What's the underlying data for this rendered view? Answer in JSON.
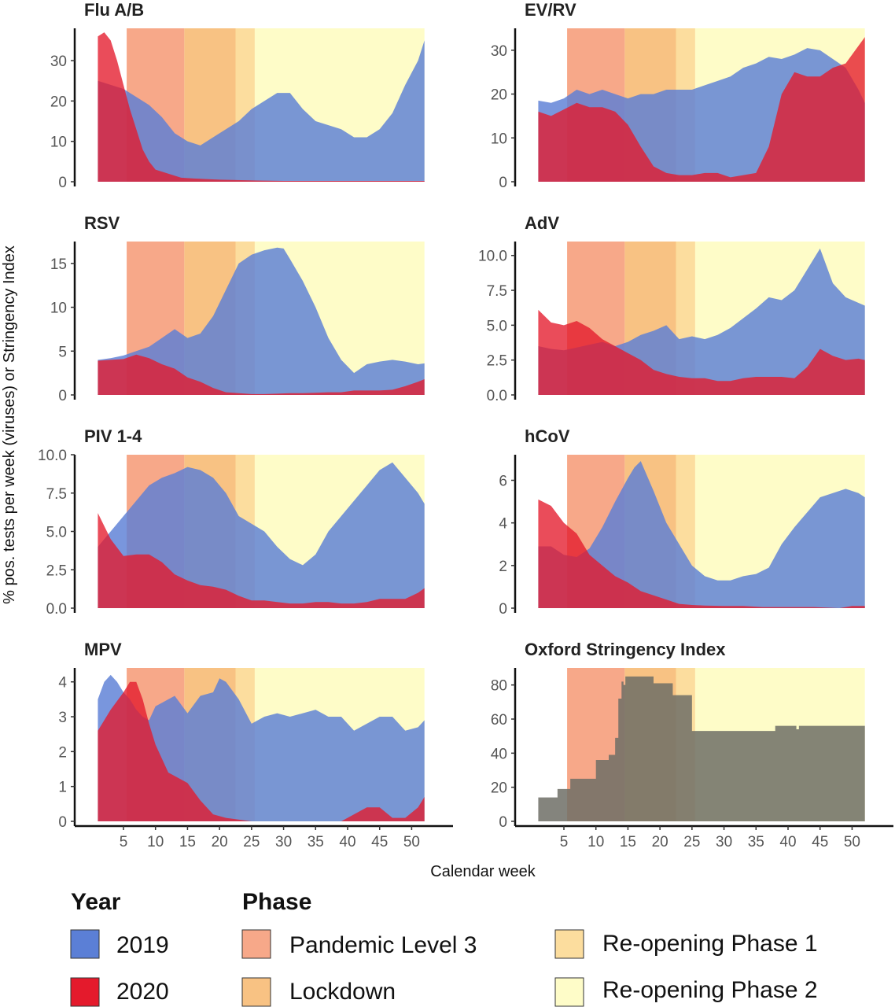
{
  "colors": {
    "y2019": "#5b7fd6",
    "y2020": "#e41a2c",
    "oxford": "#6e6e66",
    "pandemic_level_3": "#f7a889",
    "lockdown": "#f8c283",
    "reopening_1": "#fcdd9e",
    "reopening_2": "#fefcc8"
  },
  "phases": [
    {
      "name": "Pandemic Level 3",
      "start": 5.5,
      "end": 14.5,
      "color_key": "pandemic_level_3"
    },
    {
      "name": "Lockdown",
      "start": 14.5,
      "end": 22.5,
      "color_key": "lockdown"
    },
    {
      "name": "Re-opening Phase 1",
      "start": 22.5,
      "end": 25.5,
      "color_key": "reopening_1"
    },
    {
      "name": "Re-opening Phase 2",
      "start": 25.5,
      "end": 52,
      "color_key": "reopening_2"
    }
  ],
  "chart_data": [
    {
      "type": "area",
      "title": "Flu A/B",
      "xlim": [
        -2,
        54
      ],
      "ylim": [
        0,
        38
      ],
      "yticks": [
        0,
        10,
        20,
        30
      ],
      "ytick_labels": [
        "0",
        "10",
        "20",
        "30"
      ],
      "series": [
        {
          "name": "2019",
          "x": [
            1,
            3,
            5,
            7,
            9,
            11,
            13,
            15,
            17,
            19,
            21,
            23,
            25,
            27,
            29,
            31,
            33,
            35,
            37,
            39,
            41,
            43,
            45,
            47,
            49,
            51,
            52
          ],
          "values": [
            25,
            24,
            23,
            21,
            19,
            16,
            12,
            10,
            9,
            11,
            13,
            15,
            18,
            20,
            22,
            22,
            18,
            15,
            14,
            13,
            11,
            11,
            13,
            17,
            24,
            30,
            35
          ]
        },
        {
          "name": "2020",
          "x": [
            1,
            2,
            3,
            4,
            5,
            6,
            7,
            8,
            9,
            10,
            12,
            14,
            16,
            20,
            26,
            30,
            36,
            40,
            46,
            52
          ],
          "values": [
            36,
            37,
            35,
            30,
            24,
            18,
            13,
            8,
            5,
            3,
            2,
            1,
            0.8,
            0.5,
            0.3,
            0.2,
            0.2,
            0.2,
            0.2,
            0.2
          ]
        }
      ]
    },
    {
      "type": "area",
      "title": "EV/RV",
      "xlim": [
        -2,
        54
      ],
      "ylim": [
        0,
        35
      ],
      "yticks": [
        0,
        10,
        20,
        30
      ],
      "ytick_labels": [
        "0",
        "10",
        "20",
        "30"
      ],
      "series": [
        {
          "name": "2019",
          "x": [
            1,
            3,
            5,
            7,
            9,
            11,
            13,
            15,
            17,
            19,
            21,
            23,
            25,
            27,
            29,
            31,
            33,
            35,
            37,
            39,
            41,
            43,
            45,
            47,
            49,
            51,
            52
          ],
          "values": [
            18.5,
            18,
            19,
            21,
            20,
            21,
            20,
            19,
            20,
            20,
            21,
            21,
            21,
            22,
            23,
            24,
            26,
            27,
            28.5,
            28,
            29,
            30.5,
            30,
            28,
            26,
            21,
            18
          ]
        },
        {
          "name": "2020",
          "x": [
            1,
            3,
            5,
            7,
            9,
            11,
            13,
            15,
            17,
            19,
            21,
            23,
            25,
            27,
            29,
            31,
            33,
            35,
            37,
            39,
            41,
            43,
            45,
            47,
            49,
            51,
            52
          ],
          "values": [
            16,
            15,
            16.5,
            18,
            17,
            17,
            16,
            13,
            8,
            3.5,
            2,
            1.5,
            1.5,
            2,
            2,
            1,
            1.5,
            2,
            8,
            20,
            25,
            24,
            24,
            26,
            27,
            31,
            33
          ]
        }
      ]
    },
    {
      "type": "area",
      "title": "RSV",
      "xlim": [
        -2,
        54
      ],
      "ylim": [
        0,
        17.5
      ],
      "yticks": [
        0,
        5,
        10,
        15
      ],
      "ytick_labels": [
        "0",
        "5",
        "10",
        "15"
      ],
      "series": [
        {
          "name": "2019",
          "x": [
            1,
            3,
            5,
            7,
            9,
            11,
            13,
            15,
            17,
            19,
            21,
            23,
            25,
            27,
            29,
            30,
            31,
            33,
            35,
            37,
            39,
            41,
            43,
            45,
            47,
            49,
            51,
            52
          ],
          "values": [
            4,
            4.2,
            4.5,
            5,
            5.5,
            6.5,
            7.5,
            6.5,
            7,
            9,
            12,
            15,
            16,
            16.5,
            16.8,
            16.7,
            15.5,
            13,
            10,
            6.5,
            4,
            2.5,
            3.5,
            3.8,
            4,
            3.8,
            3.5,
            3.6
          ]
        },
        {
          "name": "2020",
          "x": [
            1,
            3,
            5,
            7,
            9,
            11,
            13,
            15,
            17,
            19,
            21,
            23,
            25,
            27,
            29,
            31,
            33,
            35,
            37,
            39,
            41,
            43,
            45,
            47,
            49,
            51,
            52
          ],
          "values": [
            3.9,
            4,
            4.1,
            4.6,
            4.2,
            3.5,
            3,
            2,
            1.5,
            0.8,
            0.3,
            0.2,
            0.1,
            0.1,
            0.15,
            0.2,
            0.2,
            0.25,
            0.3,
            0.3,
            0.5,
            0.5,
            0.5,
            0.6,
            1,
            1.5,
            1.8
          ]
        }
      ]
    },
    {
      "type": "area",
      "title": "AdV",
      "xlim": [
        -2,
        54
      ],
      "ylim": [
        0,
        11
      ],
      "yticks": [
        0,
        2.5,
        5,
        7.5,
        10
      ],
      "ytick_labels": [
        "0.0",
        "2.5",
        "5.0",
        "7.5",
        "10.0"
      ],
      "series": [
        {
          "name": "2019",
          "x": [
            1,
            3,
            5,
            7,
            9,
            11,
            13,
            15,
            17,
            19,
            21,
            23,
            25,
            27,
            29,
            31,
            33,
            35,
            37,
            39,
            41,
            43,
            45,
            47,
            49,
            51,
            52
          ],
          "values": [
            3.5,
            3.3,
            3.2,
            3.4,
            3.6,
            3.8,
            3.5,
            3.8,
            4.3,
            4.6,
            5,
            4,
            4.2,
            4,
            4.3,
            4.8,
            5.5,
            6.2,
            7,
            6.8,
            7.5,
            9,
            10.5,
            8,
            7,
            6.6,
            6.4
          ]
        },
        {
          "name": "2020",
          "x": [
            1,
            3,
            5,
            7,
            9,
            11,
            13,
            15,
            17,
            19,
            21,
            23,
            25,
            27,
            29,
            31,
            33,
            35,
            37,
            39,
            41,
            43,
            45,
            47,
            49,
            51,
            52
          ],
          "values": [
            6.1,
            5.2,
            5,
            5.3,
            4.8,
            4,
            3.5,
            3,
            2.5,
            1.8,
            1.5,
            1.3,
            1.2,
            1.2,
            1,
            1,
            1.2,
            1.3,
            1.3,
            1.3,
            1.2,
            2,
            3.3,
            2.8,
            2.5,
            2.6,
            2.5
          ]
        }
      ]
    },
    {
      "type": "area",
      "title": "PIV 1-4",
      "xlim": [
        -2,
        54
      ],
      "ylim": [
        0,
        10
      ],
      "yticks": [
        0,
        2.5,
        5,
        7.5,
        10
      ],
      "ytick_labels": [
        "0.0",
        "2.5",
        "5.0",
        "7.5",
        "10.0"
      ],
      "series": [
        {
          "name": "2019",
          "x": [
            1,
            3,
            5,
            7,
            9,
            11,
            13,
            15,
            17,
            19,
            21,
            23,
            25,
            27,
            29,
            31,
            33,
            35,
            37,
            39,
            41,
            43,
            45,
            47,
            49,
            51,
            52
          ],
          "values": [
            4,
            5,
            6,
            7,
            8,
            8.5,
            8.8,
            9.2,
            9,
            8.5,
            7.5,
            6,
            5.5,
            5,
            4,
            3.2,
            2.8,
            3.5,
            5,
            6,
            7,
            8,
            9,
            9.5,
            8.5,
            7.5,
            6.8
          ]
        },
        {
          "name": "2020",
          "x": [
            1,
            3,
            5,
            7,
            9,
            11,
            13,
            15,
            17,
            19,
            21,
            23,
            25,
            27,
            29,
            31,
            33,
            35,
            37,
            39,
            41,
            43,
            45,
            47,
            49,
            51,
            52
          ],
          "values": [
            6.2,
            4.5,
            3.4,
            3.5,
            3.5,
            3,
            2.2,
            1.8,
            1.5,
            1.4,
            1.2,
            0.8,
            0.5,
            0.5,
            0.4,
            0.3,
            0.3,
            0.4,
            0.4,
            0.3,
            0.3,
            0.4,
            0.6,
            0.6,
            0.6,
            1,
            1.3
          ]
        }
      ]
    },
    {
      "type": "area",
      "title": "hCoV",
      "xlim": [
        -2,
        54
      ],
      "ylim": [
        0,
        7.2
      ],
      "yticks": [
        0,
        2,
        4,
        6
      ],
      "ytick_labels": [
        "0",
        "2",
        "4",
        "6"
      ],
      "series": [
        {
          "name": "2019",
          "x": [
            1,
            3,
            5,
            7,
            9,
            11,
            13,
            15,
            16,
            17,
            19,
            21,
            23,
            25,
            27,
            29,
            31,
            33,
            35,
            37,
            39,
            41,
            43,
            45,
            47,
            49,
            51,
            52
          ],
          "values": [
            2.9,
            2.9,
            2.5,
            2.4,
            2.8,
            3.8,
            5,
            6.1,
            6.6,
            6.9,
            5.5,
            4,
            3,
            2,
            1.5,
            1.3,
            1.3,
            1.5,
            1.6,
            1.9,
            3,
            3.8,
            4.5,
            5.2,
            5.4,
            5.6,
            5.4,
            5.2
          ]
        },
        {
          "name": "2020",
          "x": [
            1,
            3,
            5,
            7,
            9,
            11,
            13,
            15,
            17,
            19,
            21,
            23,
            25,
            27,
            30,
            33,
            36,
            40,
            44,
            48,
            50,
            52
          ],
          "values": [
            5.1,
            4.8,
            4,
            3.5,
            2.5,
            2,
            1.5,
            1.2,
            0.8,
            0.6,
            0.4,
            0.2,
            0.15,
            0.12,
            0.1,
            0.1,
            0.05,
            0.05,
            0.05,
            0,
            0.1,
            0.1
          ]
        }
      ]
    },
    {
      "type": "area",
      "title": "MPV",
      "xlim": [
        -2,
        54
      ],
      "ylim": [
        0,
        4.4
      ],
      "yticks": [
        0,
        1,
        2,
        3,
        4
      ],
      "ytick_labels": [
        "0",
        "1",
        "2",
        "3",
        "4"
      ],
      "series": [
        {
          "name": "2019",
          "x": [
            1,
            2,
            3,
            4,
            5,
            6,
            7,
            8,
            9,
            10,
            11,
            13,
            15,
            17,
            19,
            20,
            21,
            23,
            25,
            27,
            29,
            31,
            33,
            35,
            37,
            39,
            41,
            43,
            45,
            47,
            49,
            51,
            52
          ],
          "values": [
            3.5,
            4,
            4.2,
            4,
            3.7,
            3.5,
            3.2,
            3,
            2.9,
            3.3,
            3.4,
            3.6,
            3.1,
            3.6,
            3.7,
            4.1,
            4,
            3.5,
            2.8,
            3,
            3.1,
            3,
            3.1,
            3.2,
            3,
            3,
            2.6,
            2.8,
            3,
            3,
            2.6,
            2.7,
            2.9
          ]
        },
        {
          "name": "2020",
          "x": [
            1,
            3,
            5,
            6,
            7,
            8,
            9,
            10,
            11,
            12,
            13,
            15,
            17,
            19,
            21,
            25,
            30,
            35,
            39,
            41,
            43,
            45,
            47,
            49,
            51,
            52
          ],
          "values": [
            2.6,
            3.2,
            3.7,
            4,
            4,
            3.5,
            2.8,
            2.2,
            1.8,
            1.4,
            1.3,
            1.1,
            0.6,
            0.2,
            0.1,
            0,
            0,
            0,
            0,
            0.2,
            0.4,
            0.4,
            0.1,
            0.1,
            0.4,
            0.7
          ]
        }
      ]
    },
    {
      "type": "area",
      "title": "Oxford Stringency Index",
      "xlim": [
        -2,
        54
      ],
      "ylim": [
        0,
        90
      ],
      "yticks": [
        0,
        20,
        40,
        60,
        80
      ],
      "ytick_labels": [
        "0",
        "20",
        "40",
        "60",
        "80"
      ],
      "series": [
        {
          "name": "Oxford Stringency Index",
          "step": true,
          "x": [
            1,
            3,
            4,
            6,
            8,
            10,
            11,
            12,
            13,
            13.5,
            14,
            14.3,
            14.6,
            15,
            17,
            19,
            20,
            22,
            24,
            25,
            37,
            38,
            39,
            41,
            41.3,
            41.7,
            52
          ],
          "values": [
            14,
            14,
            19,
            25,
            25,
            36,
            36,
            39,
            49,
            72,
            82,
            80,
            85,
            85,
            85,
            81,
            81,
            74,
            74,
            53,
            53,
            56,
            56,
            56,
            54,
            56,
            56
          ]
        }
      ]
    }
  ],
  "xticks": [
    5,
    10,
    15,
    20,
    25,
    30,
    35,
    40,
    45,
    50
  ],
  "xtick_labels": [
    "5",
    "10",
    "15",
    "20",
    "25",
    "30",
    "35",
    "40",
    "45",
    "50"
  ],
  "xlabel": "Calendar week",
  "ylabel": "% pos. tests per week (viruses) or Stringency Index",
  "legend": {
    "year_title": "Year",
    "year_items": [
      {
        "label": "2019",
        "color_key": "y2019"
      },
      {
        "label": "2020",
        "color_key": "y2020"
      }
    ],
    "phase_title": "Phase",
    "phase_items": [
      {
        "label": "Pandemic Level 3",
        "color_key": "pandemic_level_3"
      },
      {
        "label": "Lockdown",
        "color_key": "lockdown"
      },
      {
        "label": "Re-opening Phase 1",
        "color_key": "reopening_1"
      },
      {
        "label": "Re-opening Phase 2",
        "color_key": "reopening_2"
      }
    ]
  }
}
